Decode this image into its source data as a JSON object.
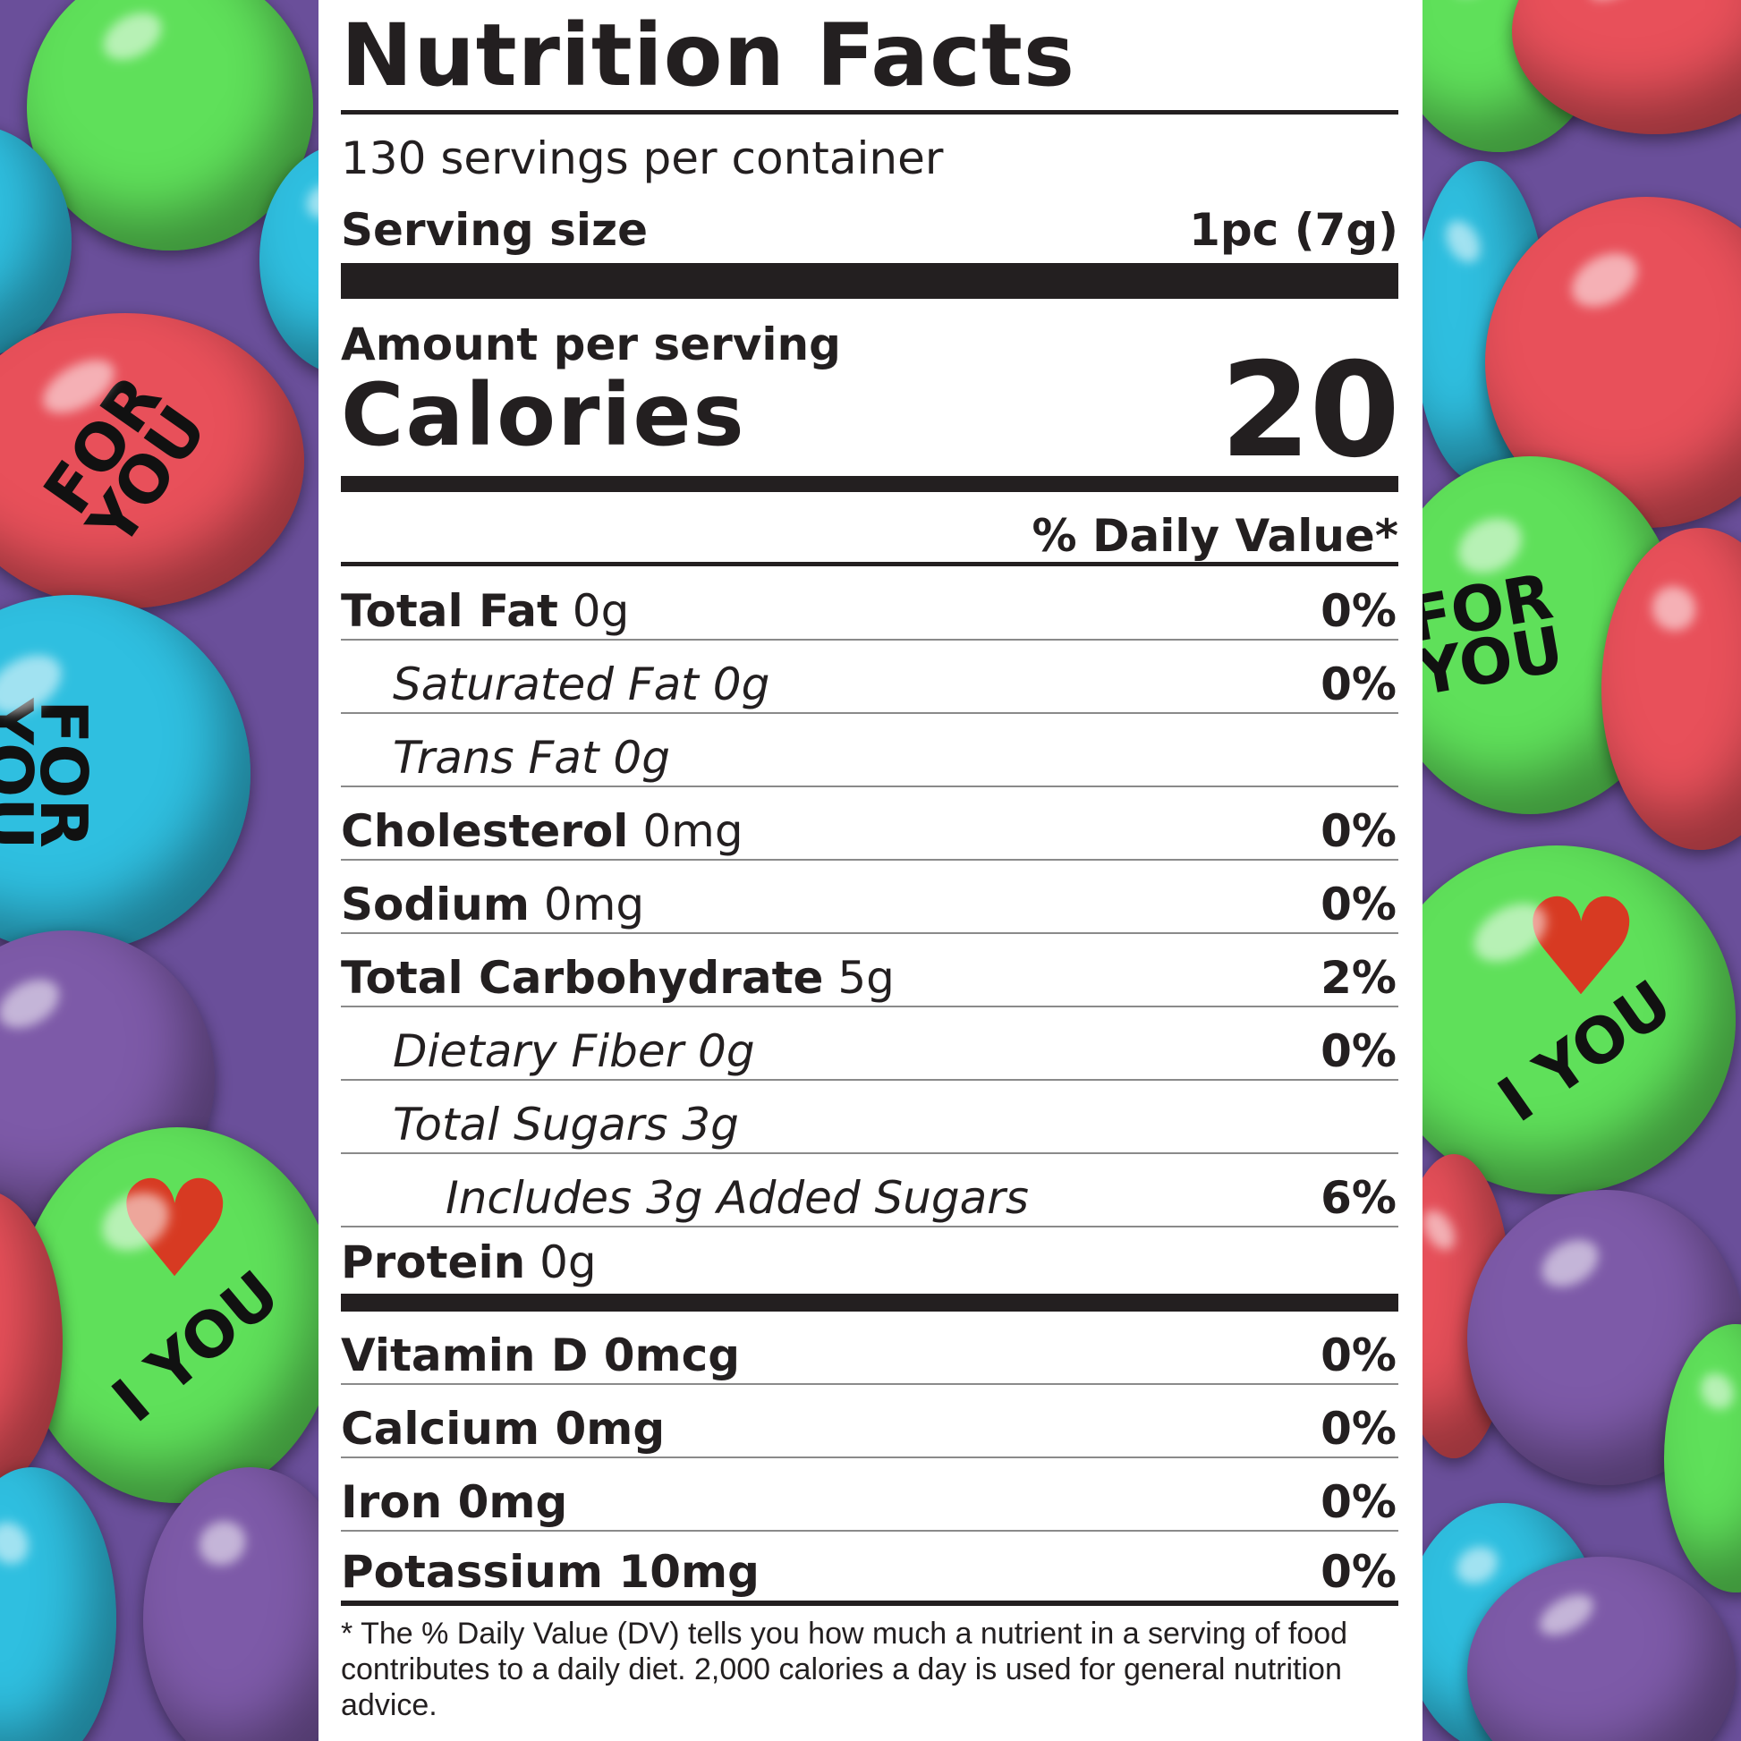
{
  "label": {
    "title": "Nutrition Facts",
    "servings_per_container": "130 servings per container",
    "serving_size_label": "Serving size",
    "serving_size_value": "1pc (7g)",
    "amount_per_serving": "Amount per serving",
    "calories_label": "Calories",
    "calories_value": "20",
    "daily_value_header": "% Daily Value*",
    "nutrients": [
      {
        "name": "Total Fat",
        "amount": " 0g",
        "dv": "0%"
      },
      {
        "name": "Saturated Fat 0g",
        "amount": "",
        "dv": "0%"
      },
      {
        "name": "Trans Fat 0g",
        "amount": "",
        "dv": ""
      },
      {
        "name": "Cholesterol",
        "amount": " 0mg",
        "dv": "0%"
      },
      {
        "name": "Sodium",
        "amount": " 0mg",
        "dv": "0%"
      },
      {
        "name": "Total Carbohydrate",
        "amount": " 5g",
        "dv": "2%"
      },
      {
        "name": "Dietary Fiber 0g",
        "amount": "",
        "dv": "0%"
      },
      {
        "name": "Total Sugars 3g",
        "amount": "",
        "dv": ""
      },
      {
        "name": "Includes 3g Added Sugars",
        "amount": "",
        "dv": "6%"
      },
      {
        "name": "Protein",
        "amount": " 0g",
        "dv": ""
      }
    ],
    "vitamins": [
      {
        "name": "Vitamin D 0mcg",
        "dv": "0%"
      },
      {
        "name": "Calcium 0mg",
        "dv": "0%"
      },
      {
        "name": "Iron 0mg",
        "dv": "0%"
      },
      {
        "name": "Potassium 10mg",
        "dv": "0%"
      }
    ],
    "footnote": "* The % Daily Value (DV) tells you how much a nutrient in a serving of food contributes to a daily diet. 2,000 calories a day is used for general nutrition advice."
  },
  "background": {
    "candy_texts": [
      "FOR YOU",
      "FOR YOU",
      "FOR YOU",
      "I YOU",
      "I YOU"
    ],
    "colors": {
      "green": "#5fe05a",
      "blue": "#2fbfe0",
      "red": "#e8505a",
      "purple": "#7d5aa8"
    }
  }
}
